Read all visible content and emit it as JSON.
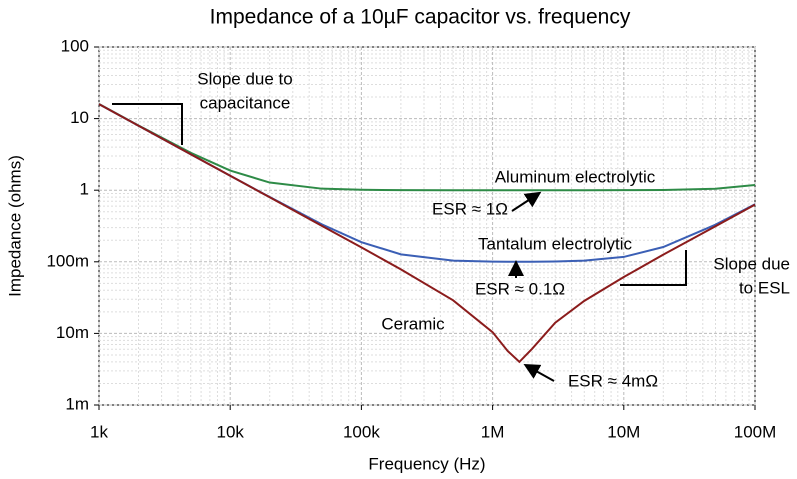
{
  "chart_data": {
    "type": "line",
    "title": "Impedance of a 10µF capacitor vs. frequency",
    "x_label": "Frequency (Hz)",
    "y_label": "Impedance (ohms)",
    "log_x": true,
    "log_y": true,
    "grid": true,
    "x": [
      1000,
      2000,
      5000,
      10000,
      20000,
      50000,
      100000,
      200000,
      500000,
      1000000,
      1300000,
      1600000,
      2000000,
      3000000,
      5000000,
      10000000,
      20000000,
      50000000,
      100000000
    ],
    "series": [
      {
        "name": "Aluminum electrolytic",
        "color": "#2e8b47",
        "values": [
          16.0,
          8.02,
          3.33,
          1.88,
          1.28,
          1.05,
          1.013,
          1.003,
          1.0,
          1.0,
          1.0,
          1.0,
          1.0,
          1.0,
          1.0,
          1.002,
          1.008,
          1.048,
          1.18
        ]
      },
      {
        "name": "Tantalum electrolytic",
        "color": "#3b5fb5",
        "values": [
          15.92,
          7.96,
          3.18,
          1.593,
          0.802,
          0.333,
          0.188,
          0.127,
          0.104,
          0.1005,
          0.1001,
          0.1,
          0.1001,
          0.101,
          0.104,
          0.117,
          0.161,
          0.33,
          0.636
        ]
      },
      {
        "name": "Ceramic",
        "color": "#8b1c1c",
        "values": [
          15.92,
          7.96,
          3.18,
          1.59,
          0.796,
          0.318,
          0.159,
          0.0783,
          0.029,
          0.0104,
          0.0057,
          0.004,
          0.0061,
          0.0141,
          0.0285,
          0.0613,
          0.126,
          0.314,
          0.628
        ]
      }
    ],
    "xlim": [
      1000,
      100000000
    ],
    "ylim": [
      0.001,
      100
    ],
    "xticks": [
      {
        "value": 1000,
        "label": "1k"
      },
      {
        "value": 10000,
        "label": "10k"
      },
      {
        "value": 100000,
        "label": "100k"
      },
      {
        "value": 1000000,
        "label": "1M"
      },
      {
        "value": 10000000,
        "label": "10M"
      },
      {
        "value": 100000000,
        "label": "100M"
      }
    ],
    "yticks": [
      {
        "value": 0.001,
        "label": "1m"
      },
      {
        "value": 0.01,
        "label": "10m"
      },
      {
        "value": 0.1,
        "label": "100m"
      },
      1,
      10,
      100
    ],
    "annotations": [
      [
        "Slope due to",
        "capacitance"
      ],
      [
        "ESR ≈ 1Ω"
      ],
      [
        "ESR ≈ 0.1Ω"
      ],
      [
        "Slope due",
        "to ESL"
      ],
      [
        "ESR ≈ 4mΩ"
      ]
    ]
  }
}
